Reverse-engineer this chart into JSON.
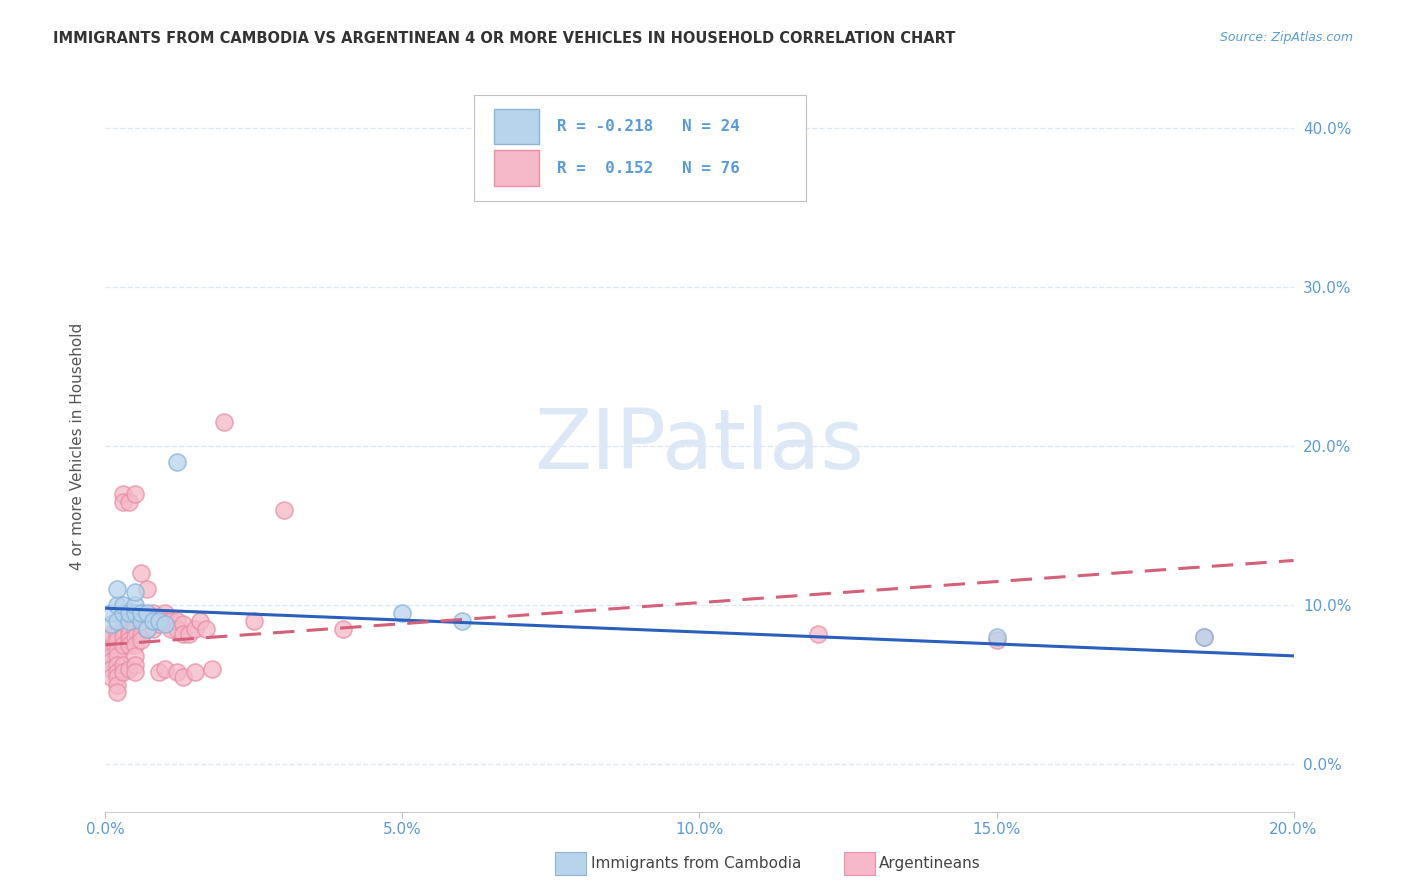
{
  "title": "IMMIGRANTS FROM CAMBODIA VS ARGENTINEAN 4 OR MORE VEHICLES IN HOUSEHOLD CORRELATION CHART",
  "source": "Source: ZipAtlas.com",
  "ylabel": "4 or more Vehicles in Household",
  "legend_cambodia": "Immigrants from Cambodia",
  "legend_argentineans": "Argentineans",
  "r_cambodia": -0.218,
  "n_cambodia": 24,
  "r_argentineans": 0.152,
  "n_argentineans": 76,
  "xmin": 0.0,
  "xmax": 0.2,
  "ymin": -0.03,
  "ymax": 0.43,
  "color_cambodia_fill": "#b8d4ed",
  "color_cambodia_edge": "#8ab4d8",
  "color_argentineans_fill": "#f5b8c8",
  "color_argentineans_edge": "#e890a8",
  "color_cambodia_line": "#2b5fbd",
  "color_argentineans_line": "#d4607a",
  "watermark_text": "ZIPatlas",
  "watermark_color": "#dce8f5",
  "title_color": "#333333",
  "axis_tick_color": "#5b9bd5",
  "grid_color": "#dce8f5",
  "source_color": "#5b9bd5",
  "cambodia_x": [
    0.001,
    0.001,
    0.002,
    0.002,
    0.002,
    0.003,
    0.003,
    0.004,
    0.004,
    0.005,
    0.005,
    0.005,
    0.006,
    0.006,
    0.007,
    0.007,
    0.008,
    0.009,
    0.01,
    0.012,
    0.05,
    0.06,
    0.15,
    0.185
  ],
  "cambodia_y": [
    0.088,
    0.095,
    0.09,
    0.1,
    0.11,
    0.095,
    0.1,
    0.09,
    0.095,
    0.095,
    0.1,
    0.108,
    0.09,
    0.095,
    0.085,
    0.095,
    0.09,
    0.09,
    0.088,
    0.19,
    0.095,
    0.09,
    0.08,
    0.08
  ],
  "argentinean_x": [
    0.001,
    0.001,
    0.001,
    0.001,
    0.001,
    0.001,
    0.001,
    0.001,
    0.002,
    0.002,
    0.002,
    0.002,
    0.002,
    0.002,
    0.002,
    0.002,
    0.002,
    0.003,
    0.003,
    0.003,
    0.003,
    0.003,
    0.003,
    0.003,
    0.004,
    0.004,
    0.004,
    0.004,
    0.004,
    0.004,
    0.004,
    0.005,
    0.005,
    0.005,
    0.005,
    0.005,
    0.005,
    0.005,
    0.005,
    0.006,
    0.006,
    0.006,
    0.006,
    0.007,
    0.007,
    0.007,
    0.008,
    0.008,
    0.008,
    0.009,
    0.009,
    0.009,
    0.01,
    0.01,
    0.01,
    0.011,
    0.011,
    0.012,
    0.012,
    0.012,
    0.013,
    0.013,
    0.013,
    0.014,
    0.015,
    0.015,
    0.016,
    0.017,
    0.018,
    0.02,
    0.025,
    0.03,
    0.04,
    0.12,
    0.15,
    0.185
  ],
  "argentinean_y": [
    0.075,
    0.08,
    0.082,
    0.07,
    0.068,
    0.065,
    0.06,
    0.055,
    0.082,
    0.078,
    0.072,
    0.068,
    0.062,
    0.058,
    0.055,
    0.05,
    0.045,
    0.085,
    0.08,
    0.075,
    0.17,
    0.165,
    0.062,
    0.058,
    0.09,
    0.085,
    0.082,
    0.078,
    0.075,
    0.165,
    0.06,
    0.09,
    0.085,
    0.08,
    0.075,
    0.17,
    0.068,
    0.062,
    0.058,
    0.088,
    0.12,
    0.082,
    0.078,
    0.11,
    0.09,
    0.085,
    0.095,
    0.09,
    0.085,
    0.092,
    0.088,
    0.058,
    0.095,
    0.09,
    0.06,
    0.09,
    0.085,
    0.09,
    0.085,
    0.058,
    0.088,
    0.082,
    0.055,
    0.082,
    0.085,
    0.058,
    0.09,
    0.085,
    0.06,
    0.215,
    0.09,
    0.16,
    0.085,
    0.082,
    0.078,
    0.08
  ],
  "cam_line_x0": 0.0,
  "cam_line_x1": 0.2,
  "cam_line_y0": 0.098,
  "cam_line_y1": 0.068,
  "arg_line_x0": 0.0,
  "arg_line_x1": 0.2,
  "arg_line_y0": 0.075,
  "arg_line_y1": 0.128
}
